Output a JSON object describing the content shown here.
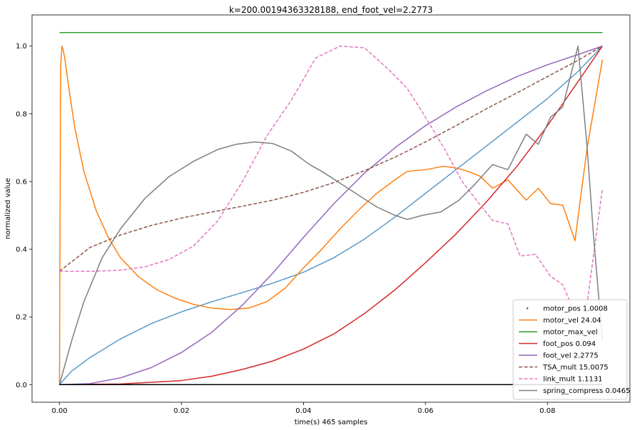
{
  "chart_data": {
    "type": "line",
    "title": "k=200.00194363328188, end_foot_vel=2.2773",
    "xlabel": "time(s) 465 samples",
    "ylabel": "normalized value",
    "xlim": [
      -0.0045,
      0.0935
    ],
    "ylim": [
      -0.052,
      1.092
    ],
    "xticks": [
      0.0,
      0.02,
      0.04,
      0.06,
      0.08
    ],
    "xtick_labels": [
      "0.00",
      "0.02",
      "0.04",
      "0.06",
      "0.08"
    ],
    "yticks": [
      0.0,
      0.2,
      0.4,
      0.6,
      0.8,
      1.0
    ],
    "ytick_labels": [
      "0.0",
      "0.2",
      "0.4",
      "0.6",
      "0.8",
      "1.0"
    ],
    "legend_position": "lower-right",
    "grid": false,
    "series": [
      {
        "name": "motor_pos 1.0008",
        "color": "#1f77b4",
        "style": "dots",
        "x": [
          0,
          0.002,
          0.005,
          0.01,
          0.015,
          0.02,
          0.025,
          0.03,
          0.035,
          0.04,
          0.045,
          0.05,
          0.055,
          0.06,
          0.065,
          0.07,
          0.075,
          0.08,
          0.085,
          0.089
        ],
        "y": [
          0.0,
          0.04,
          0.08,
          0.135,
          0.18,
          0.215,
          0.245,
          0.272,
          0.3,
          0.332,
          0.375,
          0.43,
          0.495,
          0.565,
          0.635,
          0.705,
          0.775,
          0.845,
          0.925,
          1.0
        ]
      },
      {
        "name": "motor_vel 24.04",
        "color": "#ff7f0e",
        "style": "solid",
        "x": [
          0,
          0.0001,
          0.0002,
          0.0004,
          0.0006,
          0.0009,
          0.0015,
          0.0025,
          0.004,
          0.006,
          0.008,
          0.01,
          0.013,
          0.016,
          0.019,
          0.022,
          0.025,
          0.028,
          0.031,
          0.034,
          0.037,
          0.04,
          0.043,
          0.046,
          0.049,
          0.052,
          0.055,
          0.057,
          0.06,
          0.063,
          0.065,
          0.067,
          0.069,
          0.071,
          0.0735,
          0.0765,
          0.0785,
          0.0805,
          0.0825,
          0.0845,
          0.0865,
          0.089
        ],
        "y": [
          0.0,
          0.52,
          0.94,
          1.0,
          0.99,
          0.96,
          0.88,
          0.76,
          0.63,
          0.515,
          0.435,
          0.375,
          0.318,
          0.28,
          0.255,
          0.237,
          0.226,
          0.222,
          0.226,
          0.245,
          0.285,
          0.345,
          0.4,
          0.46,
          0.515,
          0.565,
          0.605,
          0.63,
          0.635,
          0.645,
          0.64,
          0.63,
          0.615,
          0.58,
          0.605,
          0.545,
          0.58,
          0.535,
          0.53,
          0.425,
          0.7,
          0.96
        ]
      },
      {
        "name": "motor_max_vel",
        "color": "#2ca02c",
        "style": "solid",
        "x": [
          0,
          0.089
        ],
        "y": [
          1.04,
          1.04
        ]
      },
      {
        "name": "foot_pos 0.094",
        "color": "#d62728",
        "style": "solid",
        "x": [
          0,
          0.01,
          0.02,
          0.025,
          0.03,
          0.035,
          0.04,
          0.045,
          0.05,
          0.055,
          0.06,
          0.065,
          0.07,
          0.075,
          0.08,
          0.085,
          0.089
        ],
        "y": [
          0.0,
          0.002,
          0.012,
          0.025,
          0.045,
          0.07,
          0.105,
          0.15,
          0.21,
          0.28,
          0.36,
          0.445,
          0.54,
          0.645,
          0.765,
          0.895,
          1.0
        ]
      },
      {
        "name": "foot_vel 2.2775",
        "color": "#9467bd",
        "style": "solid",
        "x": [
          0,
          0.005,
          0.01,
          0.015,
          0.02,
          0.025,
          0.03,
          0.035,
          0.04,
          0.045,
          0.05,
          0.055,
          0.06,
          0.065,
          0.07,
          0.075,
          0.08,
          0.085,
          0.089
        ],
        "y": [
          0.0,
          0.003,
          0.02,
          0.05,
          0.095,
          0.155,
          0.235,
          0.33,
          0.435,
          0.535,
          0.625,
          0.7,
          0.765,
          0.82,
          0.868,
          0.91,
          0.945,
          0.975,
          1.0
        ]
      },
      {
        "name": "TSA_mult 15.0075",
        "color": "#8c564b",
        "style": "dashed",
        "x": [
          0,
          0.005,
          0.01,
          0.015,
          0.02,
          0.025,
          0.03,
          0.035,
          0.04,
          0.045,
          0.05,
          0.055,
          0.06,
          0.065,
          0.07,
          0.075,
          0.08,
          0.085,
          0.089
        ],
        "y": [
          0.335,
          0.405,
          0.442,
          0.47,
          0.492,
          0.51,
          0.527,
          0.545,
          0.568,
          0.597,
          0.632,
          0.672,
          0.717,
          0.765,
          0.815,
          0.862,
          0.91,
          0.958,
          1.0
        ]
      },
      {
        "name": "link_mult 1.1131",
        "color": "#e377c2",
        "style": "dashed",
        "x": [
          0,
          0.006,
          0.01,
          0.014,
          0.018,
          0.022,
          0.026,
          0.03,
          0.034,
          0.038,
          0.042,
          0.046,
          0.05,
          0.054,
          0.057,
          0.06,
          0.063,
          0.066,
          0.069,
          0.071,
          0.0735,
          0.0755,
          0.078,
          0.0805,
          0.0825,
          0.0845,
          0.0865,
          0.089
        ],
        "y": [
          0.335,
          0.335,
          0.338,
          0.348,
          0.37,
          0.41,
          0.485,
          0.6,
          0.735,
          0.84,
          0.965,
          1.0,
          0.995,
          0.93,
          0.875,
          0.79,
          0.7,
          0.6,
          0.53,
          0.485,
          0.475,
          0.38,
          0.385,
          0.32,
          0.295,
          0.21,
          0.24,
          0.58
        ]
      },
      {
        "name": "spring_compress 0.0465",
        "color": "#7f7f7f",
        "style": "solid",
        "x": [
          0,
          0.002,
          0.004,
          0.007,
          0.01,
          0.014,
          0.018,
          0.022,
          0.026,
          0.029,
          0.032,
          0.035,
          0.038,
          0.041,
          0.043,
          0.046,
          0.049,
          0.052,
          0.055,
          0.057,
          0.0595,
          0.0625,
          0.0655,
          0.068,
          0.071,
          0.0735,
          0.0765,
          0.0785,
          0.0805,
          0.0825,
          0.085,
          0.0865,
          0.0875,
          0.089
        ],
        "y": [
          0.0,
          0.13,
          0.245,
          0.375,
          0.46,
          0.55,
          0.615,
          0.66,
          0.695,
          0.71,
          0.717,
          0.712,
          0.69,
          0.65,
          0.63,
          0.595,
          0.56,
          0.525,
          0.5,
          0.488,
          0.5,
          0.51,
          0.545,
          0.59,
          0.65,
          0.635,
          0.74,
          0.71,
          0.79,
          0.82,
          1.0,
          0.7,
          0.45,
          0.13
        ]
      },
      {
        "name": "",
        "color": "#000000",
        "style": "solid",
        "legend": false,
        "x": [
          0,
          0.089
        ],
        "y": [
          0.0,
          0.0
        ]
      }
    ]
  }
}
